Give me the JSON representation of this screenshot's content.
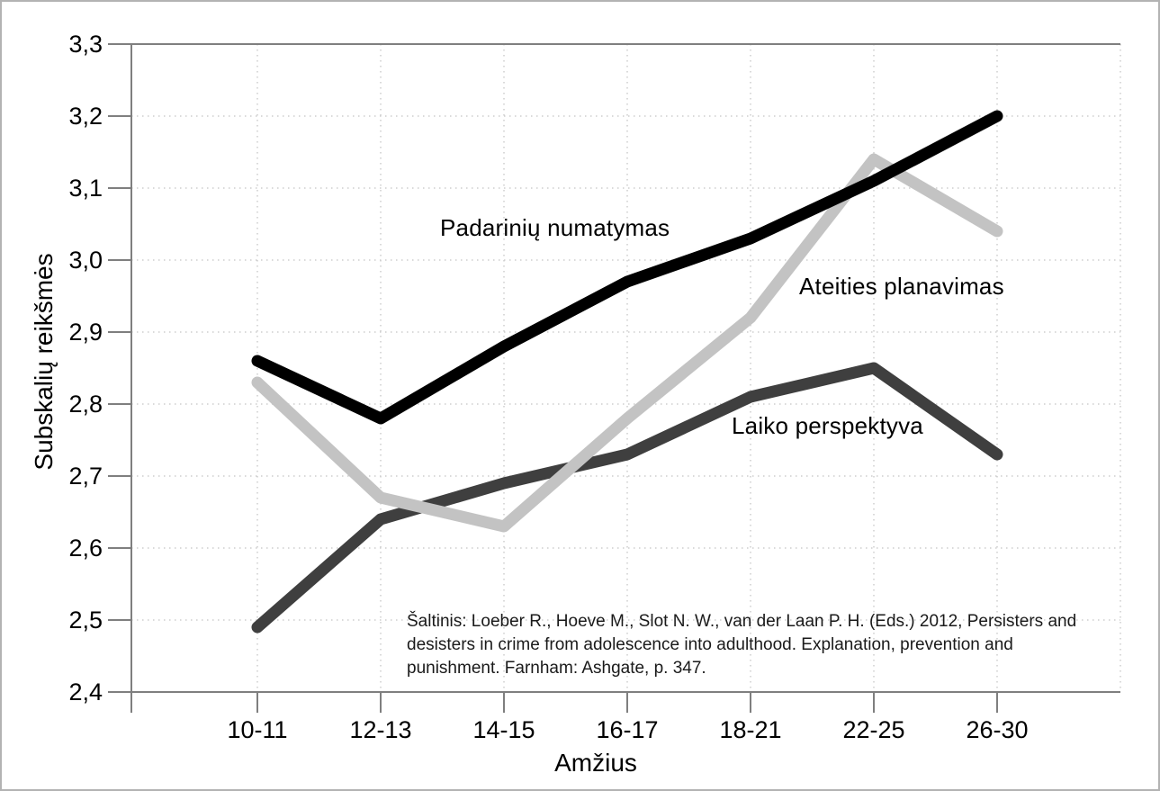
{
  "chart_data": {
    "type": "line",
    "title": "",
    "xlabel": "Amžius",
    "ylabel": "Subskalių reikšmės",
    "categories": [
      "10-11",
      "12-13",
      "14-15",
      "16-17",
      "18-21",
      "22-25",
      "26-30"
    ],
    "series": [
      {
        "name": "Padarinių numatymas",
        "color": "#000000",
        "values": [
          2.86,
          2.78,
          2.88,
          2.97,
          3.03,
          3.11,
          3.2
        ]
      },
      {
        "name": "Ateities planavimas",
        "color": "#c3c3c3",
        "values": [
          2.83,
          2.67,
          2.63,
          2.78,
          2.92,
          3.14,
          3.04
        ]
      },
      {
        "name": "Laiko perspektyva",
        "color": "#3f3f3f",
        "values": [
          2.49,
          2.64,
          2.69,
          2.73,
          2.81,
          2.85,
          2.73
        ]
      }
    ],
    "ylim": [
      2.4,
      3.3
    ],
    "y_ticks": [
      {
        "v": 3.3,
        "label": "3,3"
      },
      {
        "v": 3.2,
        "label": "3,2"
      },
      {
        "v": 3.1,
        "label": "3,1"
      },
      {
        "v": 3.0,
        "label": "3,0"
      },
      {
        "v": 2.9,
        "label": "2,9"
      },
      {
        "v": 2.8,
        "label": "2,8"
      },
      {
        "v": 2.7,
        "label": "2,7"
      },
      {
        "v": 2.6,
        "label": "2,6"
      },
      {
        "v": 2.5,
        "label": "2,5"
      },
      {
        "v": 2.4,
        "label": "2,4"
      }
    ],
    "grid": "dotted",
    "legend_position": "inline-annotations",
    "source_lines": [
      "Šaltinis: Loeber R., Hoeve M., Slot N. W., van der Laan P. H. (Eds.) 2012, Persisters and",
      "desisters in crime from adolescence into adulthood. Explanation, prevention and",
      "punishment. Farnham: Ashgate, p. 347."
    ]
  }
}
